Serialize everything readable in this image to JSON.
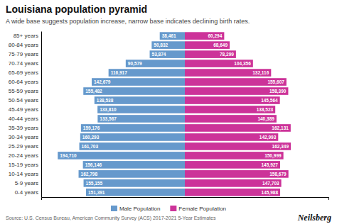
{
  "chart_data": {
    "type": "bar",
    "orientation": "horizontal",
    "title": "Louisiana population pyramid",
    "subtitle": "A wide base suggests population increase, narrow base indicates declining birth rates.",
    "annotations": [
      "Source: U.S. Census Bureau, American Community Survey (ACS) 2017-2021 5-Year Estimates",
      "Neilsberg"
    ],
    "categories": [
      "0-4 years",
      "5-9 years",
      "10-14 years",
      "15-19 years",
      "20-24 years",
      "25-29 years",
      "30-34 years",
      "35-39 years",
      "40-44 years",
      "45-49 years",
      "50-54 years",
      "55-59 years",
      "60-64 years",
      "65-69 years",
      "70-74 years",
      "75-79 years",
      "80-84 years",
      "85+ years"
    ],
    "series": [
      {
        "name": "Male Population",
        "color": "#6699cc",
        "values": [
          151391,
          155155,
          162798,
          156146,
          194710,
          161703,
          160293,
          159176,
          133567,
          133810,
          138538,
          155482,
          142679,
          116917,
          90579,
          53874,
          50832,
          38461
        ],
        "value_labels": [
          "151,391",
          "155,155",
          "162,798",
          "156,146",
          "194,710",
          "161,703",
          "160,293",
          "159,176",
          "133,567",
          "133,810",
          "138,538",
          "155,482",
          "142,679",
          "116,917",
          "90,579",
          "53,874",
          "50,832",
          "38,461"
        ]
      },
      {
        "name": "Female Population",
        "color": "#cc3399",
        "values": [
          145988,
          147703,
          158679,
          145927,
          150999,
          162349,
          142993,
          162131,
          140389,
          138523,
          145564,
          158390,
          155607,
          132116,
          104356,
          78299,
          68649,
          60294
        ],
        "value_labels": [
          "145,988",
          "147,703",
          "158,679",
          "145,927",
          "150,999",
          "162,349",
          "142,993",
          "162,131",
          "140,389",
          "138,523",
          "145,564",
          "158,390",
          "155,607",
          "132,116",
          "104,356",
          "78,299",
          "68,649",
          "60,294"
        ]
      }
    ],
    "xlim": [
      -220000,
      220000
    ],
    "xticks": [],
    "tick_labels": "y",
    "data_labels": true,
    "legend": "bottom"
  }
}
